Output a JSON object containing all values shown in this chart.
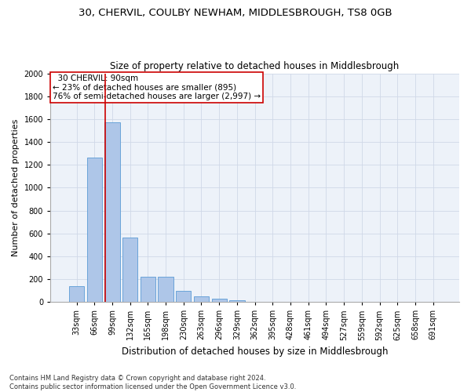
{
  "title1": "30, CHERVIL, COULBY NEWHAM, MIDDLESBROUGH, TS8 0GB",
  "title2": "Size of property relative to detached houses in Middlesbrough",
  "xlabel": "Distribution of detached houses by size in Middlesbrough",
  "ylabel": "Number of detached properties",
  "categories": [
    "33sqm",
    "66sqm",
    "99sqm",
    "132sqm",
    "165sqm",
    "198sqm",
    "230sqm",
    "263sqm",
    "296sqm",
    "329sqm",
    "362sqm",
    "395sqm",
    "428sqm",
    "461sqm",
    "494sqm",
    "527sqm",
    "559sqm",
    "592sqm",
    "625sqm",
    "658sqm",
    "691sqm"
  ],
  "values": [
    140,
    1265,
    1575,
    565,
    220,
    220,
    95,
    50,
    27,
    18,
    0,
    0,
    0,
    0,
    0,
    0,
    0,
    0,
    0,
    0,
    0
  ],
  "bar_color": "#aec6e8",
  "bar_edge_color": "#5b9bd5",
  "vline_color": "#cc0000",
  "vline_pos": 1.6,
  "annotation_text": "  30 CHERVIL: 90sqm  \n← 23% of detached houses are smaller (895)\n76% of semi-detached houses are larger (2,997) →",
  "annotation_box_color": "#ffffff",
  "annotation_box_edge": "#cc0000",
  "ylim": [
    0,
    2000
  ],
  "yticks": [
    0,
    200,
    400,
    600,
    800,
    1000,
    1200,
    1400,
    1600,
    1800,
    2000
  ],
  "grid_color": "#d0d8e8",
  "background_color": "#edf2f9",
  "footnote": "Contains HM Land Registry data © Crown copyright and database right 2024.\nContains public sector information licensed under the Open Government Licence v3.0.",
  "title1_fontsize": 9.5,
  "title2_fontsize": 8.5,
  "xlabel_fontsize": 8.5,
  "ylabel_fontsize": 8,
  "annotation_fontsize": 7.5,
  "tick_fontsize": 7,
  "footnote_fontsize": 6
}
